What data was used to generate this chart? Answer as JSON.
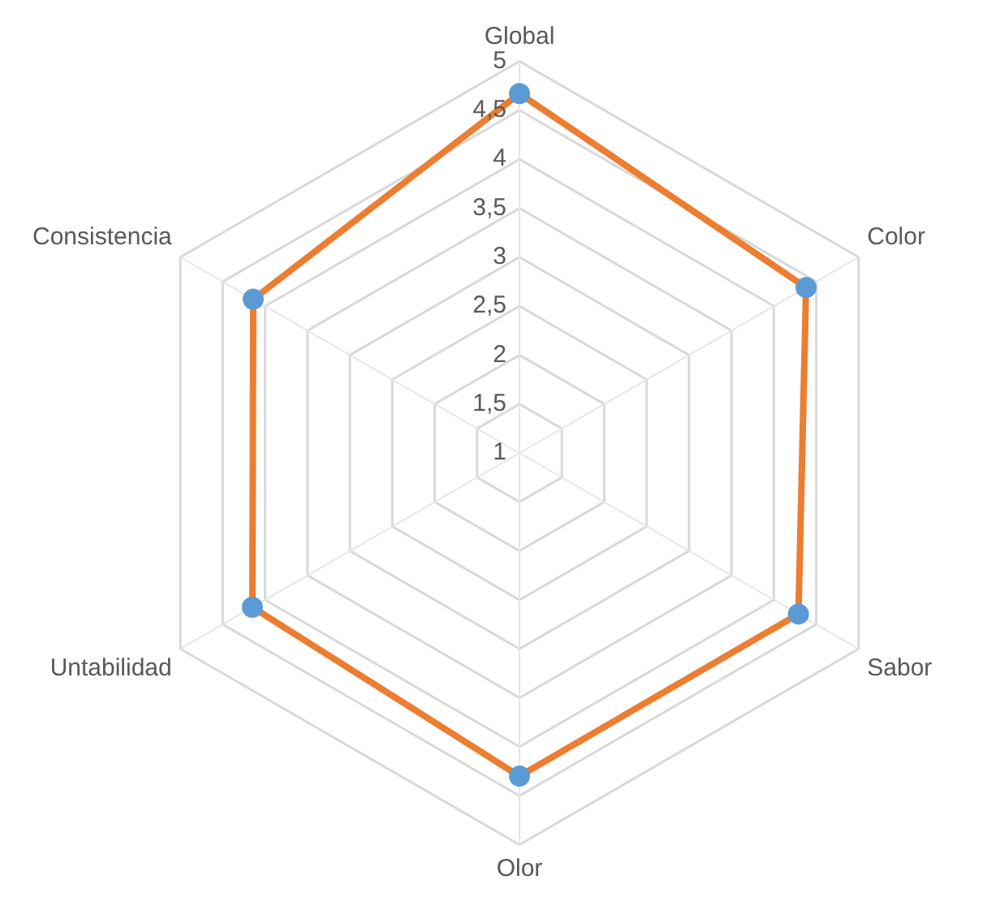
{
  "chart_data": {
    "type": "radar",
    "categories": [
      "Global",
      "Color",
      "Sabor",
      "Olor",
      "Untabilidad",
      "Consistencia"
    ],
    "series": [
      {
        "color": "#ed7d31",
        "colors": [
          "#5b9bd5",
          "#5b9bd5",
          "#5b9bd5",
          "#5b9bd5",
          "#5b9bd5",
          "#5b9bd5"
        ],
        "values": [
          4.67,
          4.38,
          4.29,
          4.3,
          4.15,
          4.14
        ]
      }
    ],
    "ylim": [
      1,
      5
    ],
    "yticks": [
      1,
      {
        "value": 1.5,
        "label": "1,5"
      },
      2,
      {
        "value": 2.5,
        "label": "2,5"
      },
      3,
      {
        "value": 3.5,
        "label": "3,5"
      },
      4,
      {
        "value": 4.5,
        "label": "4,5"
      },
      5
    ],
    "grid": true,
    "marker": "circle",
    "legend": false
  }
}
